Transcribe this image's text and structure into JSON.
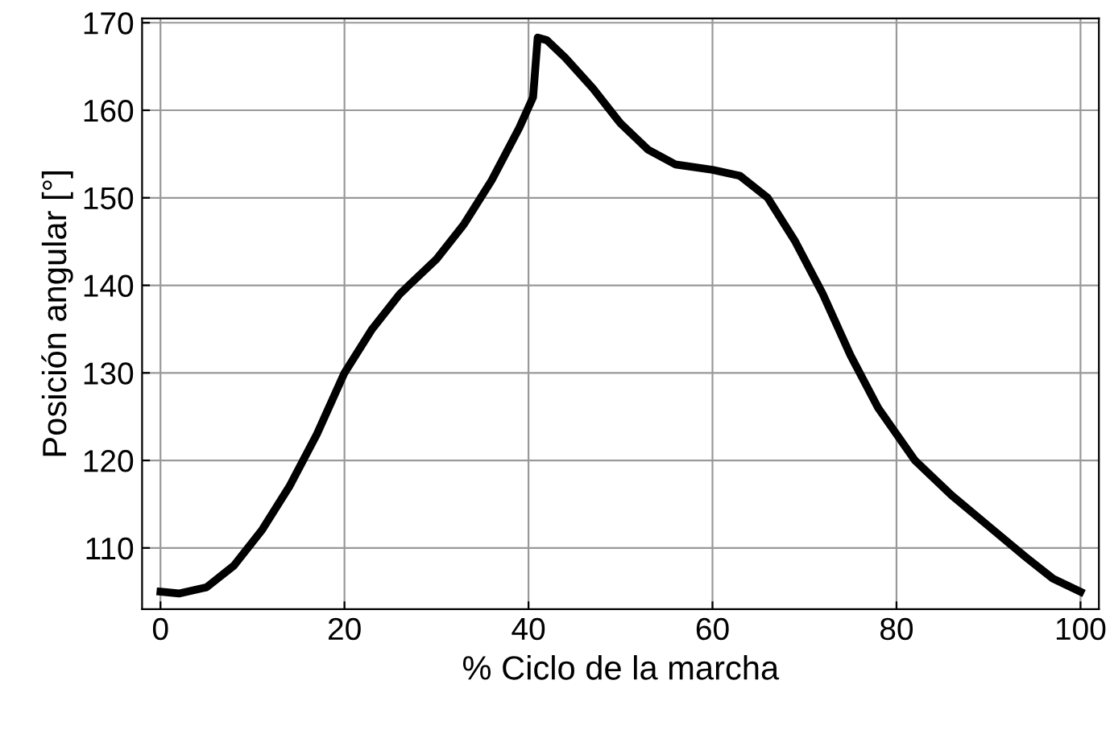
{
  "chart_data": {
    "type": "line",
    "xlabel": "% Ciclo de la marcha",
    "ylabel": "Posición angular [°]",
    "series": [
      {
        "color": "#000000",
        "x": [
          0,
          2,
          5,
          8,
          11,
          14,
          17,
          20,
          23,
          26,
          30,
          33,
          36,
          39,
          40.5,
          41,
          42,
          44,
          47,
          50,
          53,
          56,
          60,
          63,
          66,
          69,
          72,
          75,
          78,
          82,
          86,
          90,
          94,
          97,
          100
        ],
        "values": [
          105,
          104.8,
          105.5,
          108,
          112,
          117,
          123,
          130,
          135,
          139,
          143,
          147,
          152,
          158,
          161.5,
          168.3,
          168,
          166,
          162.5,
          158.5,
          155.5,
          153.8,
          153.2,
          152.5,
          150,
          145,
          139,
          132,
          126,
          120,
          116,
          112.5,
          109,
          106.5,
          105
        ]
      }
    ],
    "xlim": [
      -2,
      102
    ],
    "ylim": [
      103,
      170.5
    ],
    "xticks": [
      0,
      20,
      40,
      60,
      80,
      100
    ],
    "yticks": [
      110,
      120,
      130,
      140,
      150,
      160,
      170
    ],
    "grid": true,
    "marker": "none",
    "line_style": "solid",
    "legend": false
  }
}
